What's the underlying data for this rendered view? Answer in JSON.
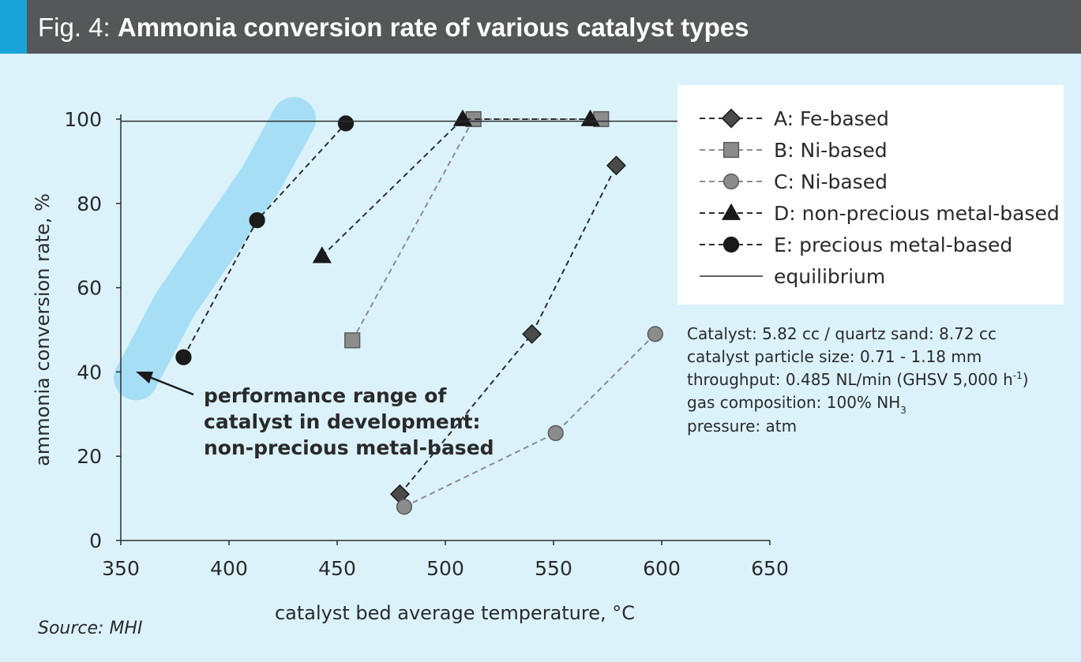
{
  "header": {
    "prefix": "Fig. 4: ",
    "title": "Ammonia conversion rate of various catalyst types"
  },
  "colors": {
    "header_bg": "#555759",
    "header_accent": "#19a3d9",
    "page_bg": "#dbf2fb",
    "highlight_band": "#a6def5",
    "series_dark": "#2d2d2d",
    "series_gray": "#8c8c8c"
  },
  "annotation": {
    "lines": [
      "performance range of",
      "catalyst in development:",
      "non-precious metal-based"
    ]
  },
  "conditions": {
    "line1": "Catalyst: 5.82 cc / quartz sand: 8.72 cc",
    "line2": "catalyst particle size: 0.71 - 1.18 mm",
    "line3_main": "throughput: 0.485 NL/min (GHSV 5,000 h",
    "line3_sup": "-1",
    "line3_end": ")",
    "line4_main": "gas composition: 100% NH",
    "line4_sub": "3",
    "line5": "pressure: atm"
  },
  "source": "Source: MHI",
  "chart_data": {
    "type": "scatter",
    "xlabel": "catalyst bed average temperature, °C",
    "ylabel": "ammonia conversion rate, %",
    "xlim": [
      350,
      650
    ],
    "ylim": [
      0,
      100
    ],
    "xticks": [
      350,
      400,
      450,
      500,
      550,
      600,
      650
    ],
    "yticks": [
      0,
      20,
      40,
      60,
      80,
      100
    ],
    "legend_position": "top-right",
    "series": [
      {
        "name": "A: Fe-based",
        "marker": "diamond",
        "line": "dashed",
        "color": "#2d2d2d",
        "fill": "#4a4a4a",
        "x": [
          479,
          540,
          579
        ],
        "y": [
          11,
          49,
          89
        ]
      },
      {
        "name": "B: Ni-based",
        "marker": "square",
        "line": "dashed",
        "color": "#8c8c8c",
        "fill": "#8c8c8c",
        "x": [
          457,
          513,
          572
        ],
        "y": [
          47.5,
          100,
          100
        ]
      },
      {
        "name": "C: Ni-based",
        "marker": "circle",
        "line": "dashed",
        "color": "#8c8c8c",
        "fill": "#8c8c8c",
        "x": [
          481,
          551,
          597
        ],
        "y": [
          8,
          25.5,
          49
        ]
      },
      {
        "name": "D: non-precious metal-based",
        "marker": "triangle",
        "line": "dashed",
        "color": "#2d2d2d",
        "fill": "#1a1a1a",
        "x": [
          443,
          508,
          567
        ],
        "y": [
          67.5,
          100,
          100
        ]
      },
      {
        "name": "E: precious metal-based",
        "marker": "circle",
        "line": "dashed",
        "color": "#2d2d2d",
        "fill": "#1a1a1a",
        "x": [
          379,
          413,
          454
        ],
        "y": [
          43.5,
          76,
          99
        ]
      },
      {
        "name": "equilibrium",
        "marker": "none",
        "line": "solid",
        "color": "#2d2d2d",
        "fill": "none",
        "x": [
          350,
          650
        ],
        "y": [
          99.5,
          99.5
        ]
      }
    ],
    "highlight_band": {
      "x": [
        357,
        375,
        395,
        415,
        430
      ],
      "y": [
        38.5,
        56,
        71,
        86,
        100
      ]
    }
  }
}
